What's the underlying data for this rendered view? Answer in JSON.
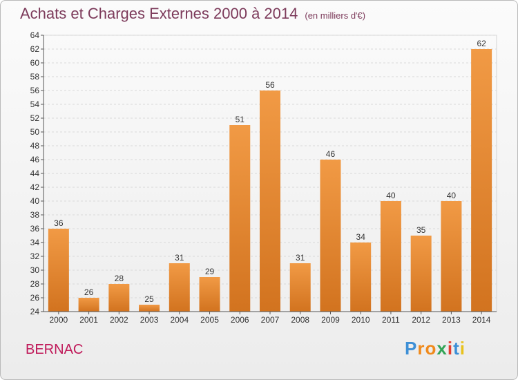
{
  "header": {
    "title": "Achats et Charges Externes 2000 à 2014",
    "subtitle": "(en milliers d'€)"
  },
  "footer": {
    "place": "BERNAC",
    "logo_letters": [
      "P",
      "r",
      "o",
      "x",
      "i",
      "t",
      "i"
    ],
    "logo_colors": [
      "#3d8fd6",
      "#f08a1c",
      "#f08a1c",
      "#33a457",
      "#e53b2f",
      "#3d8fd6",
      "#e8c21c"
    ]
  },
  "chart_data": {
    "type": "bar",
    "title": "Achats et Charges Externes 2000 à 2014",
    "subtitle": "(en milliers d'€)",
    "categories": [
      "2000",
      "2001",
      "2002",
      "2003",
      "2004",
      "2005",
      "2006",
      "2007",
      "2008",
      "2009",
      "2010",
      "2011",
      "2012",
      "2013",
      "2014"
    ],
    "values": [
      36,
      26,
      28,
      25,
      31,
      29,
      51,
      56,
      31,
      46,
      34,
      40,
      35,
      40,
      62
    ],
    "ylim": [
      24,
      64
    ],
    "yticks": [
      24,
      26,
      28,
      30,
      32,
      34,
      36,
      38,
      40,
      42,
      44,
      46,
      48,
      50,
      52,
      54,
      56,
      58,
      60,
      62,
      64
    ],
    "xlabel": "",
    "ylabel": "",
    "grid": true,
    "bar_color": "#f19a45",
    "bar_color_dark": "#d2731f"
  }
}
